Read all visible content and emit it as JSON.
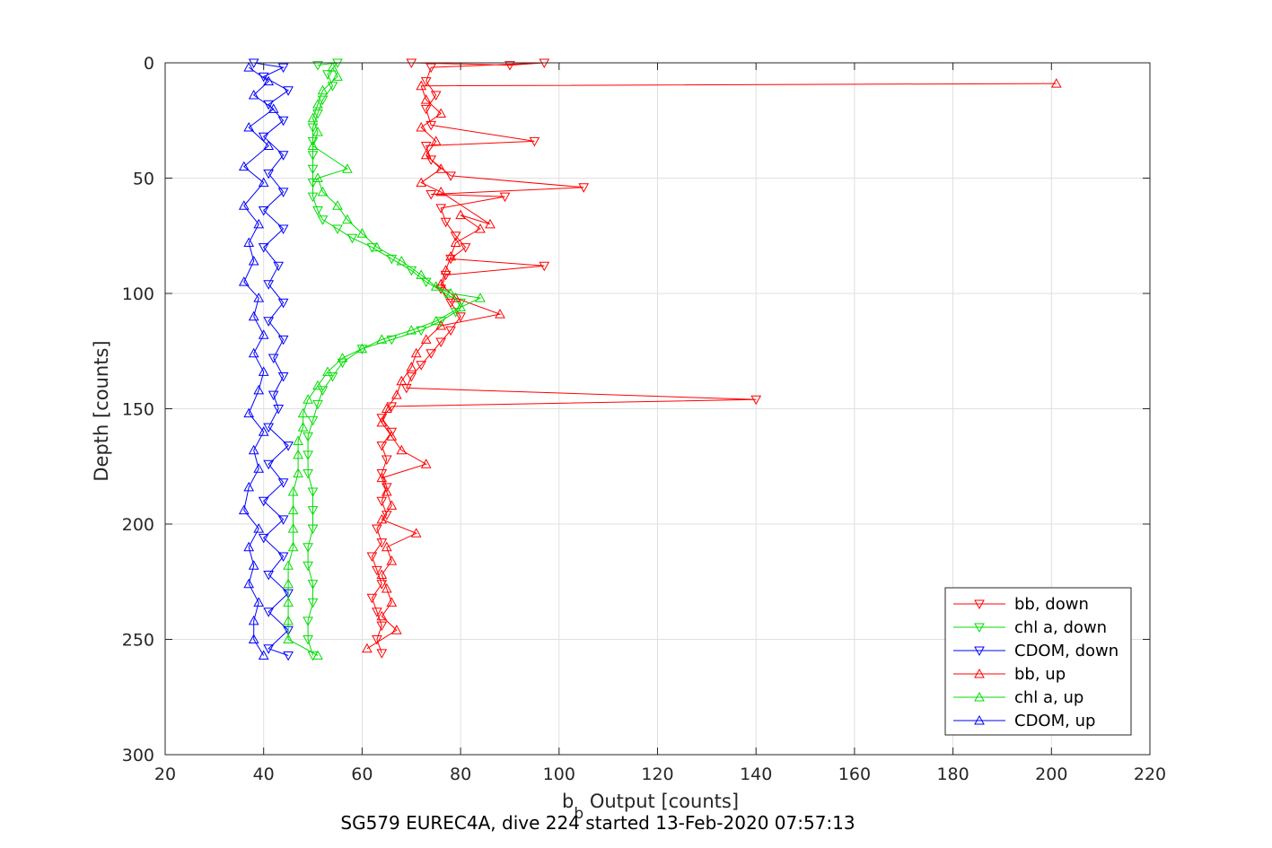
{
  "chart_data": {
    "type": "line",
    "xlabel_main": "b",
    "xlabel_sub": "b",
    "xlabel_rest": " Output [counts]",
    "ylabel": "Depth [counts]",
    "footer": "SG579 EUREC4A, dive 224 started 13-Feb-2020 07:57:13",
    "xlim": [
      20,
      220
    ],
    "ylim": [
      0,
      300
    ],
    "y_reversed": true,
    "grid": true,
    "xticks": [
      "20",
      "40",
      "60",
      "80",
      "100",
      "120",
      "140",
      "160",
      "180",
      "200",
      "220"
    ],
    "yticks": [
      "0",
      "50",
      "100",
      "150",
      "200",
      "250",
      "300"
    ],
    "legend_position": "bottom-right",
    "series": [
      {
        "name": "bb, down",
        "color": "#ff0000",
        "marker": "triangle-down",
        "points": [
          [
            70,
            0
          ],
          [
            90,
            1
          ],
          [
            97,
            0
          ],
          [
            74,
            2
          ],
          [
            73,
            8
          ],
          [
            75,
            14
          ],
          [
            73,
            20
          ],
          [
            74,
            27
          ],
          [
            95,
            34
          ],
          [
            73,
            36
          ],
          [
            74,
            42
          ],
          [
            78,
            49
          ],
          [
            105,
            54
          ],
          [
            74,
            57
          ],
          [
            89,
            58
          ],
          [
            76,
            63
          ],
          [
            77,
            69
          ],
          [
            79,
            75
          ],
          [
            81,
            80
          ],
          [
            78,
            85
          ],
          [
            97,
            88
          ],
          [
            77,
            92
          ],
          [
            76,
            98
          ],
          [
            78,
            104
          ],
          [
            80,
            110
          ],
          [
            78,
            116
          ],
          [
            76,
            121
          ],
          [
            74,
            126
          ],
          [
            72,
            131
          ],
          [
            70,
            136
          ],
          [
            69,
            141
          ],
          [
            140,
            146
          ],
          [
            66,
            149
          ],
          [
            64,
            154
          ],
          [
            66,
            160
          ],
          [
            64,
            166
          ],
          [
            65,
            172
          ],
          [
            64,
            178
          ],
          [
            65,
            184
          ],
          [
            64,
            190
          ],
          [
            65,
            196
          ],
          [
            63,
            202
          ],
          [
            64,
            208
          ],
          [
            62,
            214
          ],
          [
            63,
            220
          ],
          [
            64,
            226
          ],
          [
            62,
            232
          ],
          [
            63,
            238
          ],
          [
            64,
            244
          ],
          [
            63,
            250
          ],
          [
            64,
            256
          ]
        ]
      },
      {
        "name": "chl a, down",
        "color": "#00dd00",
        "marker": "triangle-down",
        "points": [
          [
            51,
            1
          ],
          [
            55,
            0
          ],
          [
            53,
            5
          ],
          [
            54,
            10
          ],
          [
            52,
            16
          ],
          [
            51,
            22
          ],
          [
            50,
            28
          ],
          [
            50,
            34
          ],
          [
            50,
            40
          ],
          [
            50,
            46
          ],
          [
            50,
            52
          ],
          [
            50,
            58
          ],
          [
            51,
            64
          ],
          [
            52,
            68
          ],
          [
            55,
            72
          ],
          [
            58,
            76
          ],
          [
            62,
            80
          ],
          [
            66,
            85
          ],
          [
            70,
            90
          ],
          [
            73,
            95
          ],
          [
            77,
            100
          ],
          [
            80,
            104
          ],
          [
            79,
            108
          ],
          [
            76,
            112
          ],
          [
            72,
            116
          ],
          [
            66,
            120
          ],
          [
            60,
            124
          ],
          [
            56,
            130
          ],
          [
            54,
            136
          ],
          [
            52,
            142
          ],
          [
            51,
            148
          ],
          [
            50,
            155
          ],
          [
            49,
            162
          ],
          [
            49,
            170
          ],
          [
            49,
            178
          ],
          [
            50,
            186
          ],
          [
            50,
            194
          ],
          [
            50,
            202
          ],
          [
            49,
            210
          ],
          [
            49,
            218
          ],
          [
            50,
            226
          ],
          [
            50,
            234
          ],
          [
            49,
            242
          ],
          [
            49,
            250
          ],
          [
            50,
            257
          ]
        ]
      },
      {
        "name": "CDOM, down",
        "color": "#0000ff",
        "marker": "triangle-down",
        "points": [
          [
            38,
            0
          ],
          [
            44,
            2
          ],
          [
            40,
            6
          ],
          [
            45,
            12
          ],
          [
            41,
            18
          ],
          [
            44,
            25
          ],
          [
            40,
            32
          ],
          [
            44,
            40
          ],
          [
            41,
            48
          ],
          [
            44,
            56
          ],
          [
            40,
            64
          ],
          [
            44,
            72
          ],
          [
            40,
            80
          ],
          [
            43,
            88
          ],
          [
            41,
            96
          ],
          [
            44,
            104
          ],
          [
            41,
            112
          ],
          [
            44,
            120
          ],
          [
            42,
            128
          ],
          [
            44,
            136
          ],
          [
            42,
            144
          ],
          [
            43,
            150
          ],
          [
            41,
            158
          ],
          [
            45,
            166
          ],
          [
            41,
            174
          ],
          [
            44,
            182
          ],
          [
            40,
            190
          ],
          [
            44,
            198
          ],
          [
            40,
            206
          ],
          [
            44,
            214
          ],
          [
            41,
            222
          ],
          [
            45,
            230
          ],
          [
            41,
            238
          ],
          [
            45,
            246
          ],
          [
            41,
            254
          ],
          [
            45,
            257
          ]
        ]
      },
      {
        "name": "bb, up",
        "color": "#ff0000",
        "marker": "triangle-up",
        "points": [
          [
            201,
            9
          ],
          [
            72,
            10
          ],
          [
            73,
            16
          ],
          [
            76,
            22
          ],
          [
            72,
            28
          ],
          [
            75,
            34
          ],
          [
            73,
            40
          ],
          [
            76,
            46
          ],
          [
            72,
            52
          ],
          [
            76,
            56
          ],
          [
            86,
            70
          ],
          [
            80,
            66
          ],
          [
            84,
            72
          ],
          [
            79,
            78
          ],
          [
            78,
            84
          ],
          [
            77,
            90
          ],
          [
            76,
            96
          ],
          [
            79,
            102
          ],
          [
            88,
            109
          ],
          [
            76,
            114
          ],
          [
            73,
            120
          ],
          [
            71,
            126
          ],
          [
            70,
            132
          ],
          [
            68,
            138
          ],
          [
            67,
            144
          ],
          [
            65,
            150
          ],
          [
            64,
            156
          ],
          [
            66,
            162
          ],
          [
            68,
            168
          ],
          [
            73,
            174
          ],
          [
            64,
            180
          ],
          [
            65,
            186
          ],
          [
            66,
            192
          ],
          [
            64,
            198
          ],
          [
            71,
            204
          ],
          [
            65,
            210
          ],
          [
            66,
            216
          ],
          [
            64,
            222
          ],
          [
            65,
            228
          ],
          [
            66,
            234
          ],
          [
            64,
            240
          ],
          [
            67,
            246
          ],
          [
            61,
            254
          ]
        ]
      },
      {
        "name": "chl a, up",
        "color": "#00dd00",
        "marker": "triangle-up",
        "points": [
          [
            54,
            2
          ],
          [
            55,
            6
          ],
          [
            52,
            12
          ],
          [
            51,
            18
          ],
          [
            50,
            24
          ],
          [
            51,
            30
          ],
          [
            50,
            36
          ],
          [
            57,
            46
          ],
          [
            51,
            50
          ],
          [
            52,
            56
          ],
          [
            55,
            62
          ],
          [
            57,
            68
          ],
          [
            60,
            74
          ],
          [
            63,
            80
          ],
          [
            68,
            86
          ],
          [
            72,
            92
          ],
          [
            75,
            97
          ],
          [
            78,
            100
          ],
          [
            84,
            102
          ],
          [
            80,
            106
          ],
          [
            75,
            112
          ],
          [
            70,
            116
          ],
          [
            64,
            120
          ],
          [
            60,
            124
          ],
          [
            56,
            128
          ],
          [
            53,
            134
          ],
          [
            51,
            140
          ],
          [
            49,
            146
          ],
          [
            48,
            152
          ],
          [
            48,
            158
          ],
          [
            47,
            164
          ],
          [
            47,
            170
          ],
          [
            47,
            178
          ],
          [
            46,
            186
          ],
          [
            46,
            194
          ],
          [
            46,
            202
          ],
          [
            46,
            210
          ],
          [
            45,
            218
          ],
          [
            45,
            226
          ],
          [
            45,
            234
          ],
          [
            45,
            242
          ],
          [
            45,
            250
          ],
          [
            51,
            257
          ]
        ]
      },
      {
        "name": "CDOM, up",
        "color": "#0000ff",
        "marker": "triangle-up",
        "points": [
          [
            37,
            2
          ],
          [
            41,
            8
          ],
          [
            38,
            14
          ],
          [
            42,
            20
          ],
          [
            37,
            28
          ],
          [
            41,
            36
          ],
          [
            36,
            45
          ],
          [
            40,
            52
          ],
          [
            36,
            62
          ],
          [
            39,
            70
          ],
          [
            37,
            78
          ],
          [
            38,
            86
          ],
          [
            36,
            95
          ],
          [
            39,
            102
          ],
          [
            38,
            110
          ],
          [
            40,
            118
          ],
          [
            38,
            126
          ],
          [
            40,
            134
          ],
          [
            39,
            142
          ],
          [
            37,
            152
          ],
          [
            40,
            160
          ],
          [
            38,
            168
          ],
          [
            39,
            176
          ],
          [
            37,
            184
          ],
          [
            36,
            194
          ],
          [
            39,
            202
          ],
          [
            37,
            210
          ],
          [
            38,
            218
          ],
          [
            37,
            226
          ],
          [
            39,
            234
          ],
          [
            38,
            242
          ],
          [
            38,
            250
          ],
          [
            40,
            257
          ]
        ]
      }
    ]
  }
}
